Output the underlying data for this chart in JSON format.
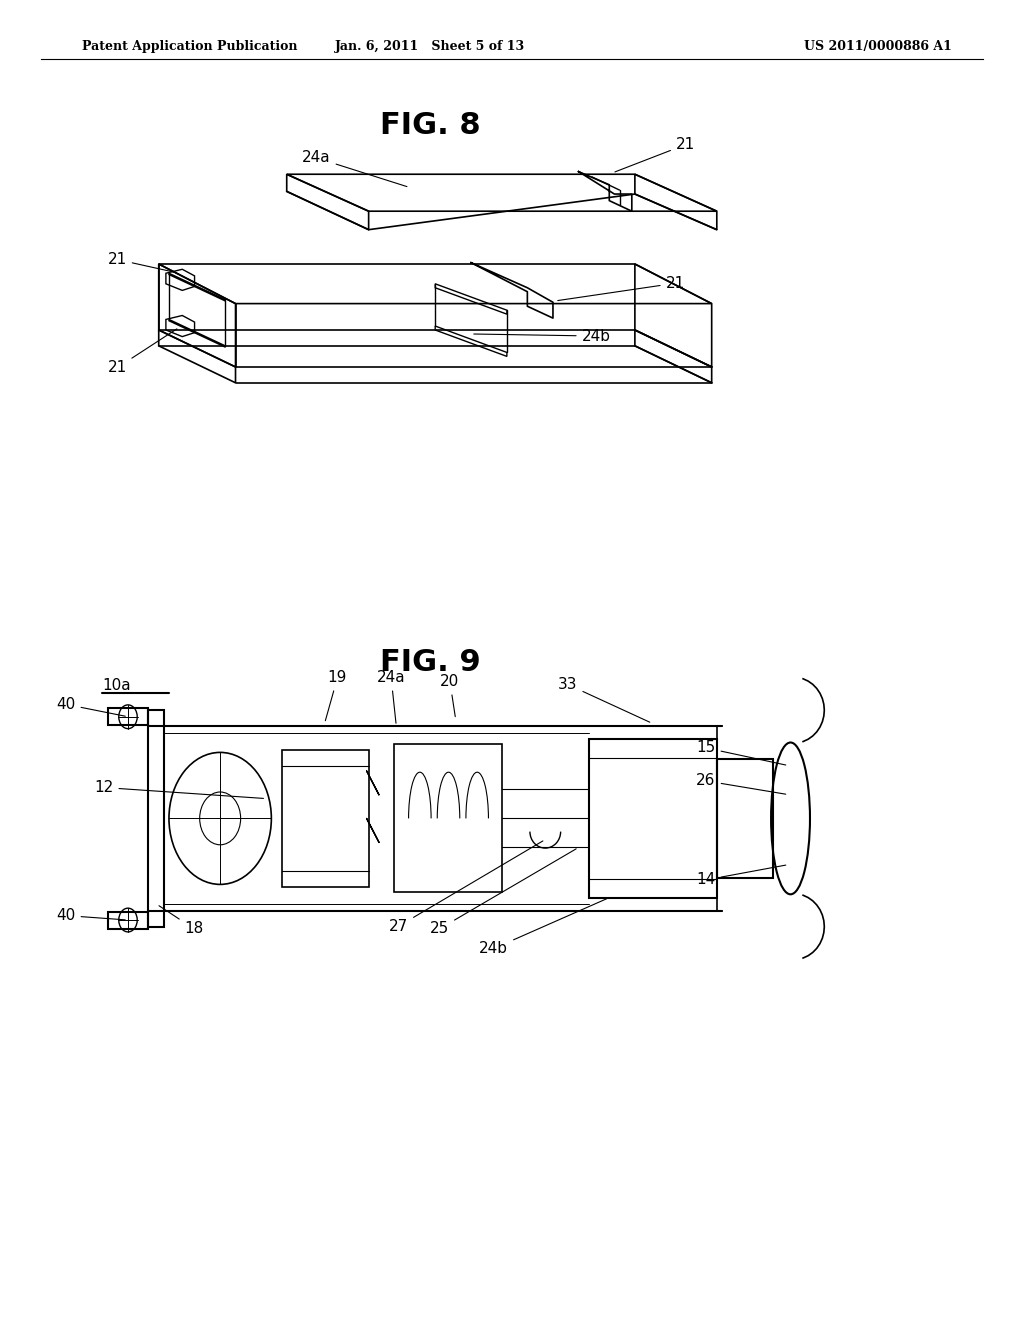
{
  "background_color": "#ffffff",
  "header_left": "Patent Application Publication",
  "header_mid": "Jan. 6, 2011   Sheet 5 of 13",
  "header_right": "US 2011/0000886 A1",
  "fig8_title": "FIG. 8",
  "fig9_title": "FIG. 9",
  "line_color": "#000000",
  "text_color": "#000000"
}
